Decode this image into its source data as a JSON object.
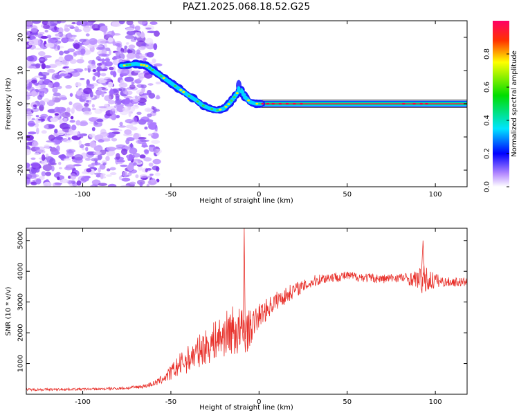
{
  "title": "PAZ1.2025.068.18.52.G25",
  "chart_data": [
    {
      "type": "heatmap",
      "xlabel": "Height of straight line (km)",
      "ylabel": "Frequency (Hz)",
      "xlim": [
        -132,
        118
      ],
      "ylim": [
        -25,
        25
      ],
      "xticks": [
        -100,
        -50,
        0,
        50,
        100
      ],
      "yticks": [
        -20,
        -10,
        0,
        10,
        20
      ],
      "ridge": {
        "x": [
          -77,
          -70,
          -64,
          -60,
          -56,
          -52,
          -48,
          -44,
          -40,
          -36,
          -32,
          -28,
          -24,
          -20,
          -17,
          -14,
          -12,
          -11,
          -10,
          -8,
          -5,
          -2,
          0,
          5,
          20,
          50,
          80,
          95,
          118
        ],
        "y": [
          11.5,
          12,
          11.5,
          10,
          8.5,
          7,
          5.5,
          4,
          2.5,
          1.2,
          -0.5,
          -1.4,
          -2,
          -1.5,
          0,
          2,
          3.5,
          4.5,
          4,
          2,
          0.5,
          0,
          0,
          0,
          0,
          0,
          0,
          0,
          0
        ]
      },
      "colorbar": {
        "label": "Normalized spectral amplitude",
        "ticks": [
          "0.0",
          "0.2",
          "0.4",
          "0.6",
          "0.8"
        ],
        "tick_values": [
          0,
          0.2,
          0.4,
          0.6,
          0.8
        ],
        "range": [
          0,
          1
        ]
      }
    },
    {
      "type": "line",
      "xlabel": "Height of straight line (km)",
      "ylabel": "SNR (10 * v/v)",
      "xlim": [
        -132,
        118
      ],
      "ylim": [
        0,
        5400
      ],
      "xticks": [
        -100,
        -50,
        0,
        50,
        100
      ],
      "yticks": [
        1000,
        2000,
        3000,
        4000,
        5000
      ],
      "color": "#e8302a",
      "series": [
        {
          "x": [
            -132,
            -110,
            -90,
            -75,
            -65,
            -58,
            -52,
            -48,
            -44,
            -40,
            -36,
            -32,
            -28,
            -24,
            -20,
            -16,
            -12,
            -8,
            -4,
            0,
            5,
            10,
            15,
            20,
            25,
            30,
            35,
            40,
            50,
            60,
            70,
            80,
            85,
            90,
            93,
            96,
            100,
            105,
            110,
            118
          ],
          "y": [
            150,
            160,
            170,
            200,
            260,
            380,
            600,
            800,
            1000,
            1150,
            1300,
            1500,
            1600,
            1800,
            1900,
            2100,
            2000,
            2000,
            2200,
            2550,
            2800,
            3050,
            3200,
            3400,
            3500,
            3650,
            3750,
            3800,
            3850,
            3800,
            3750,
            3800,
            3750,
            3750,
            3700,
            3700,
            3700,
            3650,
            3650,
            3650
          ],
          "noise": [
            40,
            40,
            40,
            50,
            60,
            100,
            200,
            300,
            400,
            450,
            500,
            550,
            600,
            650,
            700,
            800,
            900,
            800,
            500,
            400,
            350,
            300,
            280,
            250,
            200,
            200,
            180,
            170,
            150,
            150,
            150,
            150,
            200,
            300,
            500,
            400,
            250,
            150,
            150,
            150
          ]
        }
      ]
    }
  ]
}
